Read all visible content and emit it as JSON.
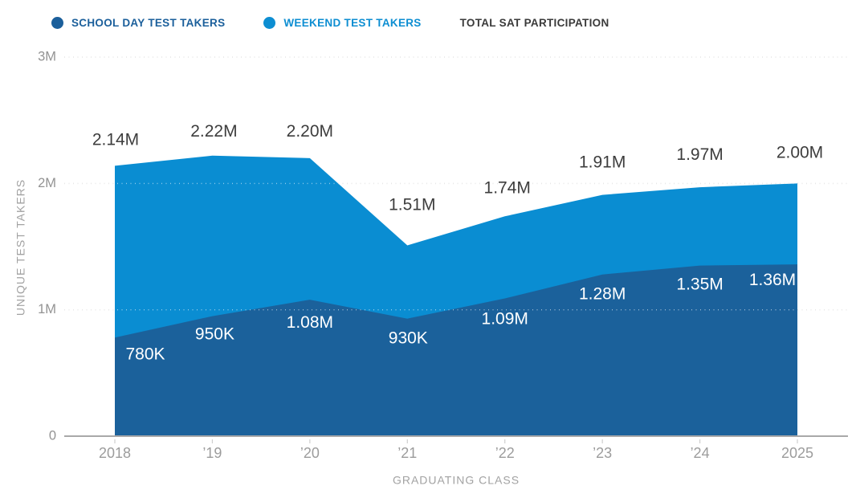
{
  "legend": {
    "position": "top-left",
    "items": [
      {
        "label": "SCHOOL DAY TEST TAKERS",
        "color": "#1b5f9b",
        "dot": true
      },
      {
        "label": "WEEKEND TEST TAKERS",
        "color": "#0d8ed2",
        "dot": true
      },
      {
        "label": "TOTAL SAT PARTICIPATION",
        "color": "#3a3a3a",
        "dot": false
      }
    ]
  },
  "chart_data": {
    "type": "area",
    "stacked": true,
    "categories": [
      "2018",
      "’19",
      "’20",
      "’21",
      "’22",
      "’23",
      "’24",
      "2025"
    ],
    "xlabel": "GRADUATING CLASS",
    "ylabel": "UNIQUE TEST TAKERS",
    "ylim": [
      0,
      3000000
    ],
    "y_ticks": [
      {
        "value": 0,
        "label": "0"
      },
      {
        "value": 1000000,
        "label": "1M"
      },
      {
        "value": 2000000,
        "label": "2M"
      },
      {
        "value": 3000000,
        "label": "3M"
      }
    ],
    "grid": "dotted-horizontal",
    "legend_position": "top-left",
    "series": [
      {
        "name": "School Day Test Takers",
        "color": "#1b619b",
        "values": [
          780000,
          950000,
          1080000,
          930000,
          1090000,
          1280000,
          1350000,
          1360000
        ],
        "labels": [
          "780K",
          "950K",
          "1.08M",
          "930K",
          "1.09M",
          "1.28M",
          "1.35M",
          "1.36M"
        ],
        "label_color": "#ffffff"
      },
      {
        "name": "Weekend Test Takers",
        "color": "#0a8dd2",
        "values": [
          1360000,
          1270000,
          1120000,
          580000,
          650000,
          630000,
          620000,
          640000
        ]
      }
    ],
    "totals": {
      "name": "Total SAT Participation",
      "values": [
        2140000,
        2220000,
        2200000,
        1510000,
        1740000,
        1910000,
        1970000,
        2000000
      ],
      "labels": [
        "2.14M",
        "2.22M",
        "2.20M",
        "1.51M",
        "1.74M",
        "1.91M",
        "1.97M",
        "2.00M"
      ],
      "label_color": "#3d3d3d"
    },
    "colors": {
      "grid_line": "#c9c9c9",
      "grid_line_over_area": "rgba(255,255,255,0.55)",
      "axis_line": "#a9a9a9",
      "tick_mark": "#cfcfcf"
    }
  }
}
